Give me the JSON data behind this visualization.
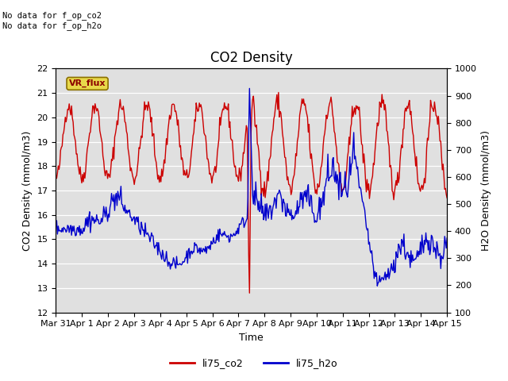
{
  "title": "CO2 Density",
  "xlabel": "Time",
  "ylabel_left": "CO2 Density (mmol/m3)",
  "ylabel_right": "H2O Density (mmol/m3)",
  "ylim_left": [
    12.0,
    22.0
  ],
  "ylim_right": [
    100,
    1000
  ],
  "yticks_left": [
    12.0,
    13.0,
    14.0,
    15.0,
    16.0,
    17.0,
    18.0,
    19.0,
    20.0,
    21.0,
    22.0
  ],
  "yticks_right": [
    100,
    200,
    300,
    400,
    500,
    600,
    700,
    800,
    900,
    1000
  ],
  "xtick_labels": [
    "Mar 31",
    "Apr 1",
    "Apr 2",
    "Apr 3",
    "Apr 4",
    "Apr 5",
    "Apr 6",
    "Apr 7",
    "Apr 8",
    "Apr 9",
    "Apr 10",
    "Apr 11",
    "Apr 12",
    "Apr 13",
    "Apr 14",
    "Apr 15"
  ],
  "color_co2": "#cc0000",
  "color_h2o": "#0000cc",
  "line_width": 1.0,
  "background_color": "#e0e0e0",
  "annotation_text": "No data for f_op_co2\nNo data for f_op_h2o",
  "vr_flux_label": "VR_flux",
  "legend_labels": [
    "li75_co2",
    "li75_h2o"
  ],
  "title_fontsize": 12,
  "axis_fontsize": 9,
  "tick_fontsize": 8
}
